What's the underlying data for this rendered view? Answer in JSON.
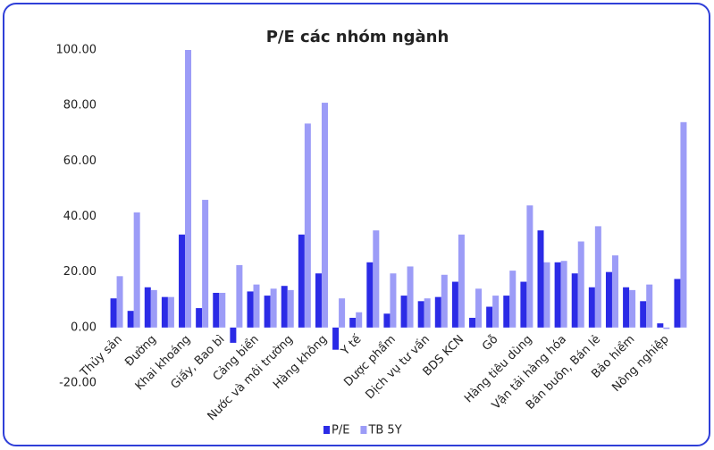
{
  "chart_data": {
    "type": "bar",
    "title": "P/E các nhóm ngành",
    "categories": [
      "Thủy sản",
      null,
      "Đường",
      null,
      "Khai khoáng",
      null,
      "Giấy, Bao bì",
      null,
      "Cảng biển",
      null,
      "Nước và môi trường",
      null,
      "Hàng không",
      null,
      "Y tế",
      null,
      "Dược phẩm",
      null,
      "Dịch vụ tư vấn",
      null,
      "BDS KCN",
      null,
      "Gỗ",
      null,
      "Hàng tiêu dùng",
      null,
      "Vận tải hàng hóa",
      null,
      "Bán buôn, Bán lẻ",
      null,
      "Bảo hiểm",
      null,
      "Nông nghiệp",
      null
    ],
    "series": [
      {
        "name": "P/E",
        "color": "#2b2be6",
        "values": [
          10.5,
          6,
          14.5,
          11,
          33.5,
          7,
          12.5,
          -5.5,
          13,
          11.5,
          15,
          33.5,
          19.5,
          -8,
          3.5,
          23.5,
          5,
          11.5,
          9.5,
          11,
          16.5,
          3.5,
          7.5,
          11.5,
          16.5,
          35,
          23.5,
          19.5,
          14.5,
          20,
          14.5,
          9.5,
          1.5,
          17.5
        ]
      },
      {
        "name": "TB 5Y",
        "color": "#9c9cf7",
        "values": [
          18.5,
          41.5,
          13.5,
          11,
          100,
          46,
          12.5,
          22.5,
          15.5,
          14,
          13.5,
          73.5,
          81,
          10.5,
          5.5,
          35,
          19.5,
          22,
          10.5,
          19,
          33.5,
          14,
          11.5,
          20.5,
          44,
          23.5,
          24,
          31,
          36.5,
          26,
          13.5,
          15.5,
          -0.5,
          74
        ]
      }
    ],
    "ylim": [
      -20,
      100
    ],
    "yticks": [
      {
        "value": -20,
        "label": "-20.00"
      },
      {
        "value": 0,
        "label": "0.00"
      },
      {
        "value": 20,
        "label": "20.00"
      },
      {
        "value": 40,
        "label": "40.00"
      },
      {
        "value": 60,
        "label": "60.00"
      },
      {
        "value": 80,
        "label": "80.00"
      },
      {
        "value": 100,
        "label": "100.00"
      }
    ],
    "legend": "bottom"
  }
}
